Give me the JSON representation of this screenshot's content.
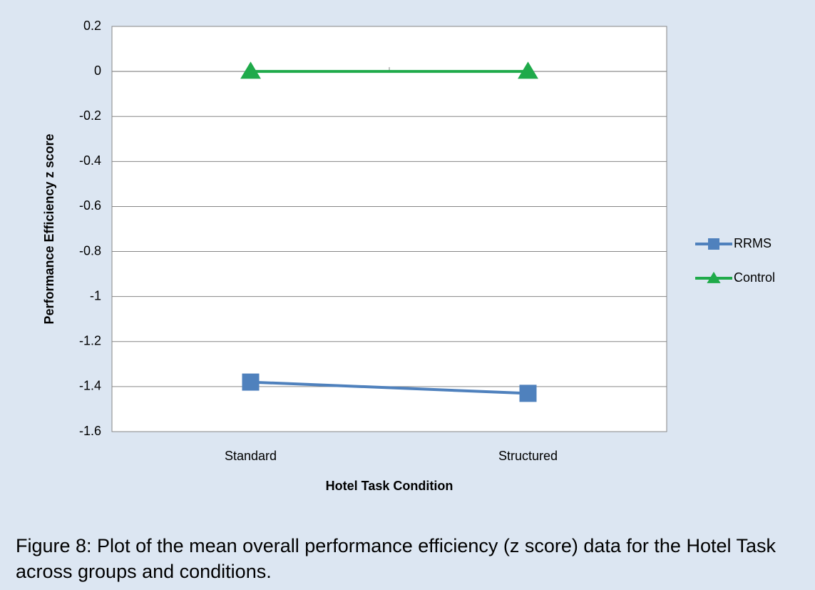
{
  "chart_data": {
    "type": "line",
    "x_label": "Hotel Task Condition",
    "y_label": "Performance Efficiency z score",
    "categories": [
      "Standard",
      "Structured"
    ],
    "series": [
      {
        "name": "RRMS",
        "color": "#4f81bd",
        "marker": "square",
        "values": [
          -1.38,
          -1.43
        ]
      },
      {
        "name": "Control",
        "color": "#1faa4a",
        "marker": "triangle",
        "values": [
          0,
          0
        ]
      }
    ],
    "ylim": [
      -1.6,
      0.2
    ],
    "yticks": [
      0.2,
      0,
      -0.2,
      -0.4,
      -0.6,
      -0.8,
      -1,
      -1.2,
      -1.4,
      -1.6
    ],
    "grid": true,
    "legend": "right",
    "caption": "Figure 8: Plot of the mean overall performance efficiency (z score) data for the Hotel Task across groups and conditions."
  }
}
